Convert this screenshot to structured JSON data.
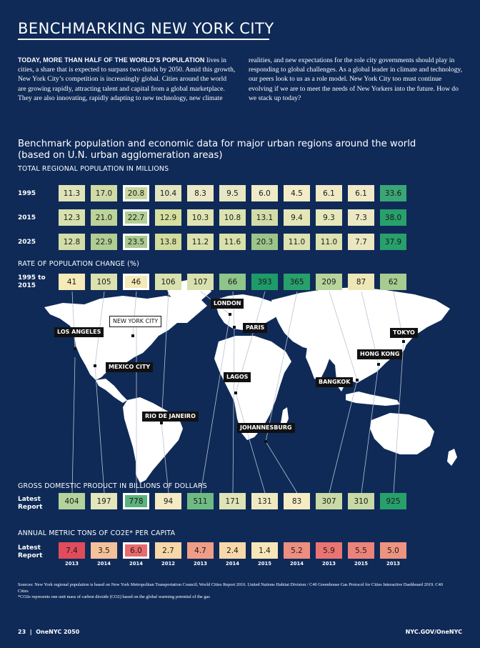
{
  "title": "BENCHMARKING NEW YORK CITY",
  "intro": {
    "lead": "TODAY, MORE THAN HALF OF THE WORLD’S POPULATION",
    "col1_rest": " lives in cities, a share that is expected to surpass two-thirds by 2050. Amid this growth, New York City’s competition is increasingly global. Cities around the world are growing rapidly, attracting talent and capital from a global marketplace. They are also innovating, rapidly adapting to new technology, new climate",
    "col2": "realities, and new expectations for the role city governments should play in responding to global challenges. As a global leader in climate and technology, our peers look to us as a role model. New York City too must continue evolving if we are to meet the needs of New Yorkers into the future. How do we stack up today?"
  },
  "chart_title": "Benchmark population and economic data for major urban regions around the world (based on U.N. urban agglomeration areas)",
  "chart_data": {
    "type": "table",
    "cities": [
      "LOS ANGELES",
      "MEXICO CITY",
      "NEW YORK CITY",
      "RIO DE JANEIRO",
      "LONDON",
      "PARIS",
      "LAGOS",
      "JOHANNESBURG",
      "BANGKOK",
      "HONG KONG",
      "TOKYO"
    ],
    "highlight_city": "NEW YORK CITY",
    "population": {
      "label": "TOTAL REGIONAL POPULATION IN MILLIONS",
      "rows": [
        {
          "label": "1995",
          "values": [
            "11.3",
            "17.0",
            "20.8",
            "10.4",
            "8.3",
            "9.5",
            "6.0",
            "4.5",
            "6.1",
            "6.1",
            "33.6"
          ]
        },
        {
          "label": "2015",
          "values": [
            "12.3",
            "21.0",
            "22.7",
            "12.9",
            "10.3",
            "10.8",
            "13.1",
            "9.4",
            "9.3",
            "7.3",
            "38.0"
          ]
        },
        {
          "label": "2025",
          "values": [
            "12.8",
            "22.9",
            "23.5",
            "13.8",
            "11.2",
            "11.6",
            "20.3",
            "11.0",
            "11.0",
            "7.7",
            "37.9"
          ]
        }
      ],
      "colors": [
        [
          "#dfe4b8",
          "#cfdba6",
          "#c8d8a0",
          "#e3e5c0",
          "#ebe8c8",
          "#e8e7c4",
          "#efeac8",
          "#f3ecc8",
          "#efe9c6",
          "#efe9c6",
          "#3aa675"
        ],
        [
          "#d8e0ae",
          "#bcd39a",
          "#b3cf95",
          "#d6df9f",
          "#e0e4b3",
          "#dde3b0",
          "#d3dca8",
          "#e5e6b8",
          "#e6e7bb",
          "#ede8c4",
          "#27a06c"
        ],
        [
          "#d3dda8",
          "#b0cd92",
          "#a8ca8e",
          "#d0db9c",
          "#dbe2ae",
          "#d9e1ab",
          "#9cc58a",
          "#dce2b0",
          "#dce2b0",
          "#ebe7c0",
          "#27a06c"
        ]
      ]
    },
    "rate": {
      "label": "RATE OF POPULATION CHANGE (%)",
      "row_label": "1995 to\n2015",
      "values": [
        "41",
        "105",
        "46",
        "106",
        "107",
        "66",
        "393",
        "365",
        "209",
        "87",
        "62"
      ],
      "colors": [
        "#f6eab8",
        "#dbe2b0",
        "#f4e9b8",
        "#d9e1ae",
        "#d8e0ad",
        "#8fc58a",
        "#1d9c6a",
        "#28a06c",
        "#b7d49b",
        "#ede6b7",
        "#a7cc91"
      ]
    },
    "gdp": {
      "label": "GROSS DOMESTIC PRODUCT IN BILLIONS OF DOLLARS",
      "row_label": "Latest\nReport",
      "values": [
        "404",
        "197",
        "778",
        "94",
        "511",
        "171",
        "131",
        "83",
        "307",
        "310",
        "925"
      ],
      "colors": [
        "#b4d39a",
        "#e4e6bb",
        "#5bb27c",
        "#f4ebc2",
        "#6fba82",
        "#dfe4b6",
        "#efe9c2",
        "#f5ecc4",
        "#c8daa5",
        "#c7d9a4",
        "#27a06c"
      ]
    },
    "co2": {
      "label": "ANNUAL METRIC TONS OF CO2E* PER CAPITA",
      "row_label": "Latest\nReport",
      "values": [
        "7.4",
        "3.5",
        "6.0",
        "2.7",
        "4.7",
        "2.4",
        "1.4",
        "5.2",
        "5.9",
        "5.5",
        "5.0"
      ],
      "colors": [
        "#e04c5c",
        "#f4c29a",
        "#e96a6e",
        "#f7d6a8",
        "#ef9d86",
        "#f7d8aa",
        "#f8e6b8",
        "#ee8e80",
        "#ea7472",
        "#ec837a",
        "#ee9380"
      ],
      "years": [
        "2013",
        "2014",
        "2014",
        "2012",
        "2013",
        "2014",
        "2015",
        "2014",
        "2013",
        "2015",
        "2013"
      ]
    }
  },
  "notes": {
    "sources": "Sources: New York regional population is based on New York Metropolitan Transportation Council; World Cities Report 2016. United Nations Habitat Division / C40 Greenhouse Gas Protocol for Cities Interactive Dashboard 2019. C40 Cities",
    "footnote": "*CO2e represents one unit mass of carbon dioxide (CO2) based on the global warming potential of the gas"
  },
  "footer": {
    "left": "23  |  OneNYC 2050",
    "right": "NYC.GOV/OneNYC"
  },
  "colors": {
    "background": "#0f2a57",
    "map": "#ffffff",
    "label_bg": "#111111"
  }
}
